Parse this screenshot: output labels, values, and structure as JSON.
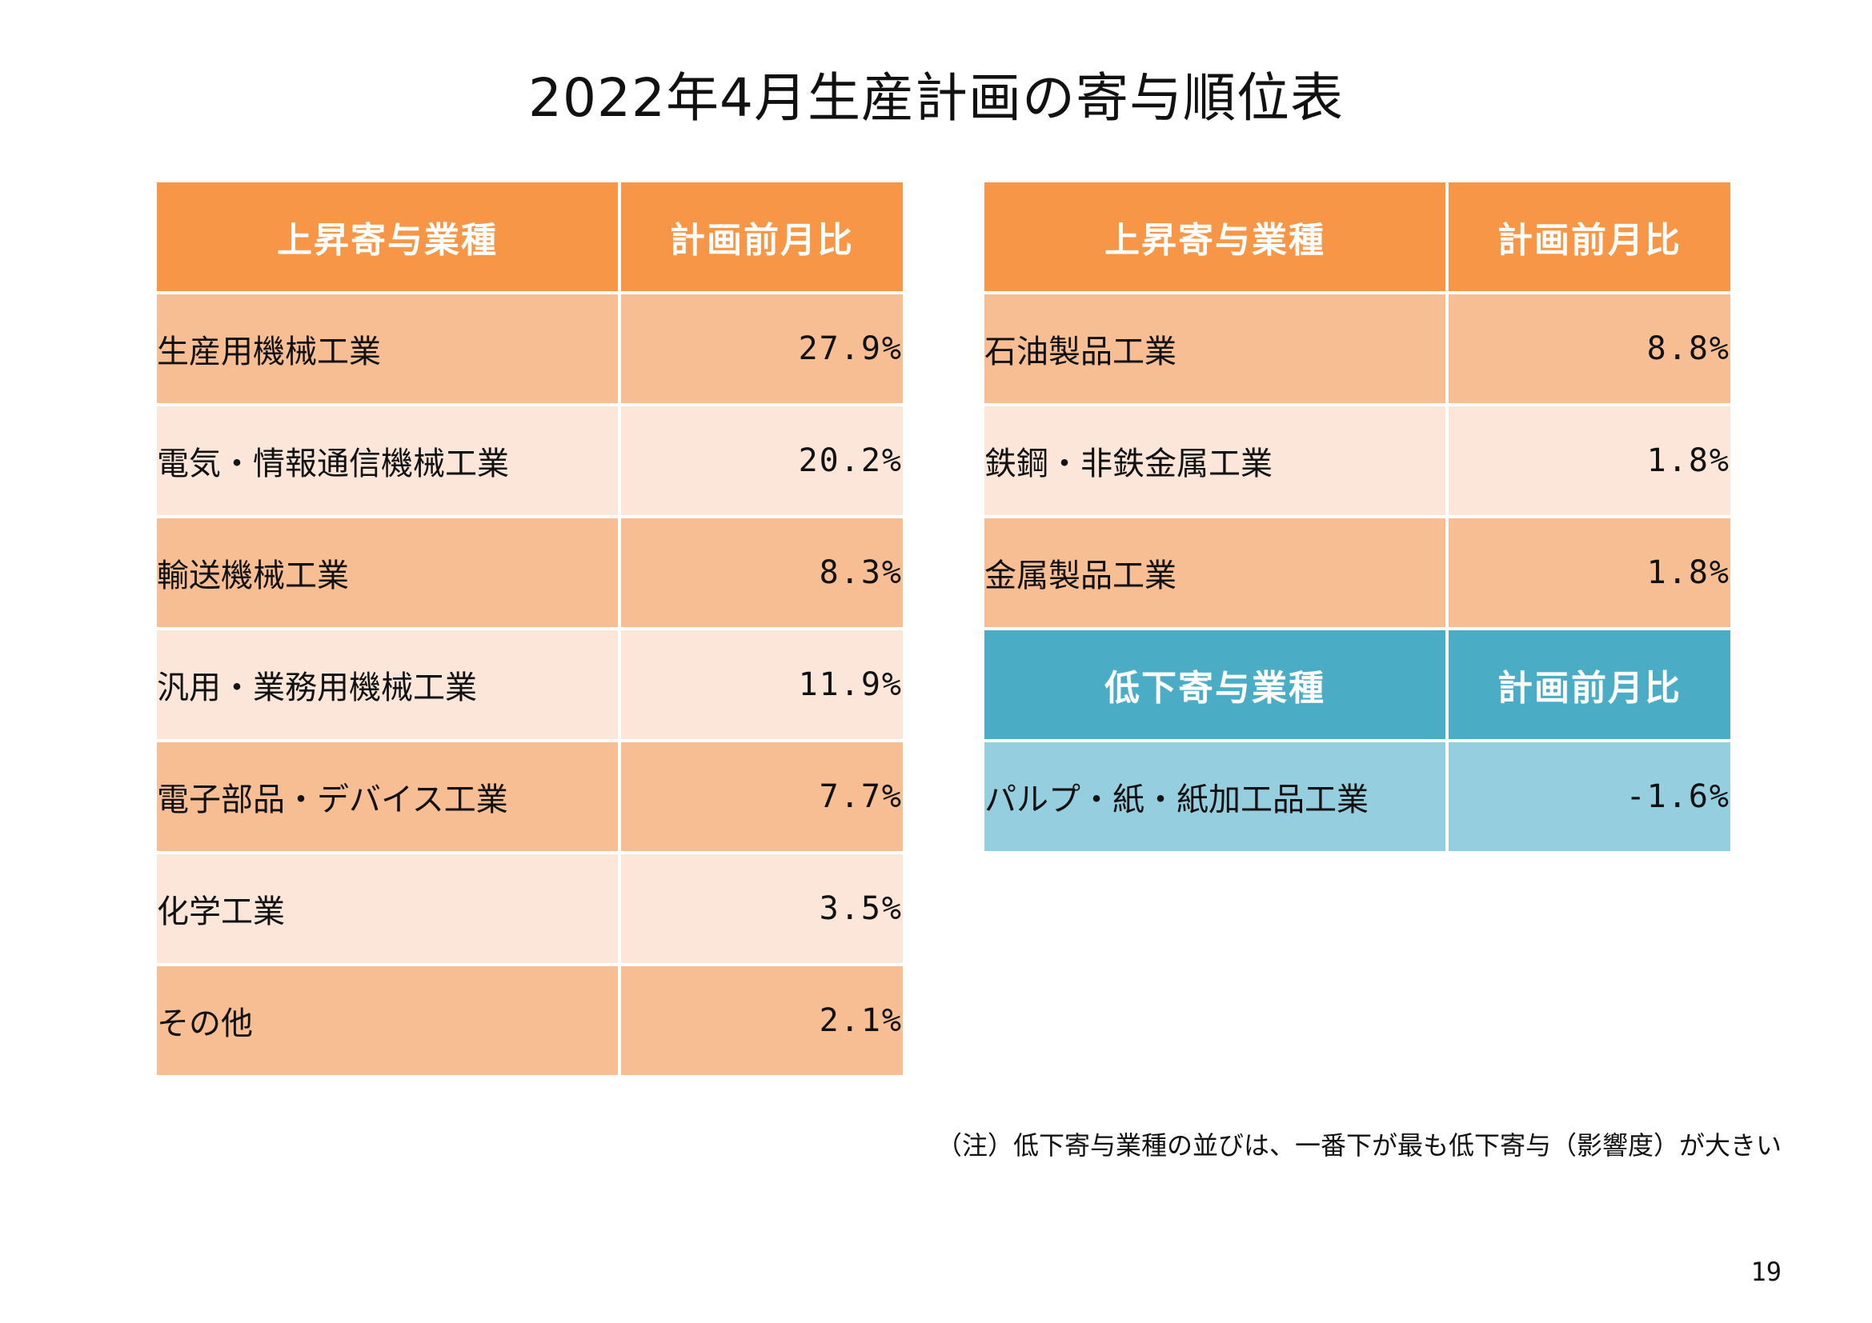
{
  "title": "2022年4月生産計画の寄与順位表",
  "colors": {
    "increase_header": "#F79646",
    "decrease_header": "#4BACC6",
    "row_dark": "#F8BE93",
    "row_light": "#FCE6D9",
    "row_blue": "#95CEDE"
  },
  "left_table": {
    "header": {
      "industry": "上昇寄与業種",
      "value": "計画前月比"
    },
    "rows": [
      {
        "industry": "生産用機械工業",
        "value": "27.9%"
      },
      {
        "industry": "電気・情報通信機械工業",
        "value": "20.2%"
      },
      {
        "industry": "輸送機械工業",
        "value": "8.3%"
      },
      {
        "industry": "汎用・業務用機械工業",
        "value": "11.9%"
      },
      {
        "industry": "電子部品・デバイス工業",
        "value": "7.7%"
      },
      {
        "industry": "化学工業",
        "value": "3.5%"
      },
      {
        "industry": "その他",
        "value": "2.1%"
      }
    ]
  },
  "right_table": {
    "increase_header": {
      "industry": "上昇寄与業種",
      "value": "計画前月比"
    },
    "increase_rows": [
      {
        "industry": "石油製品工業",
        "value": "8.8%"
      },
      {
        "industry": "鉄鋼・非鉄金属工業",
        "value": "1.8%"
      },
      {
        "industry": "金属製品工業",
        "value": "1.8%"
      }
    ],
    "decrease_header": {
      "industry": "低下寄与業種",
      "value": "計画前月比"
    },
    "decrease_rows": [
      {
        "industry": "パルプ・紙・紙加工品工業",
        "value": "-1.6%"
      }
    ]
  },
  "note": "（注）低下寄与業種の並びは、一番下が最も低下寄与（影響度）が大きい",
  "page_number": "19"
}
